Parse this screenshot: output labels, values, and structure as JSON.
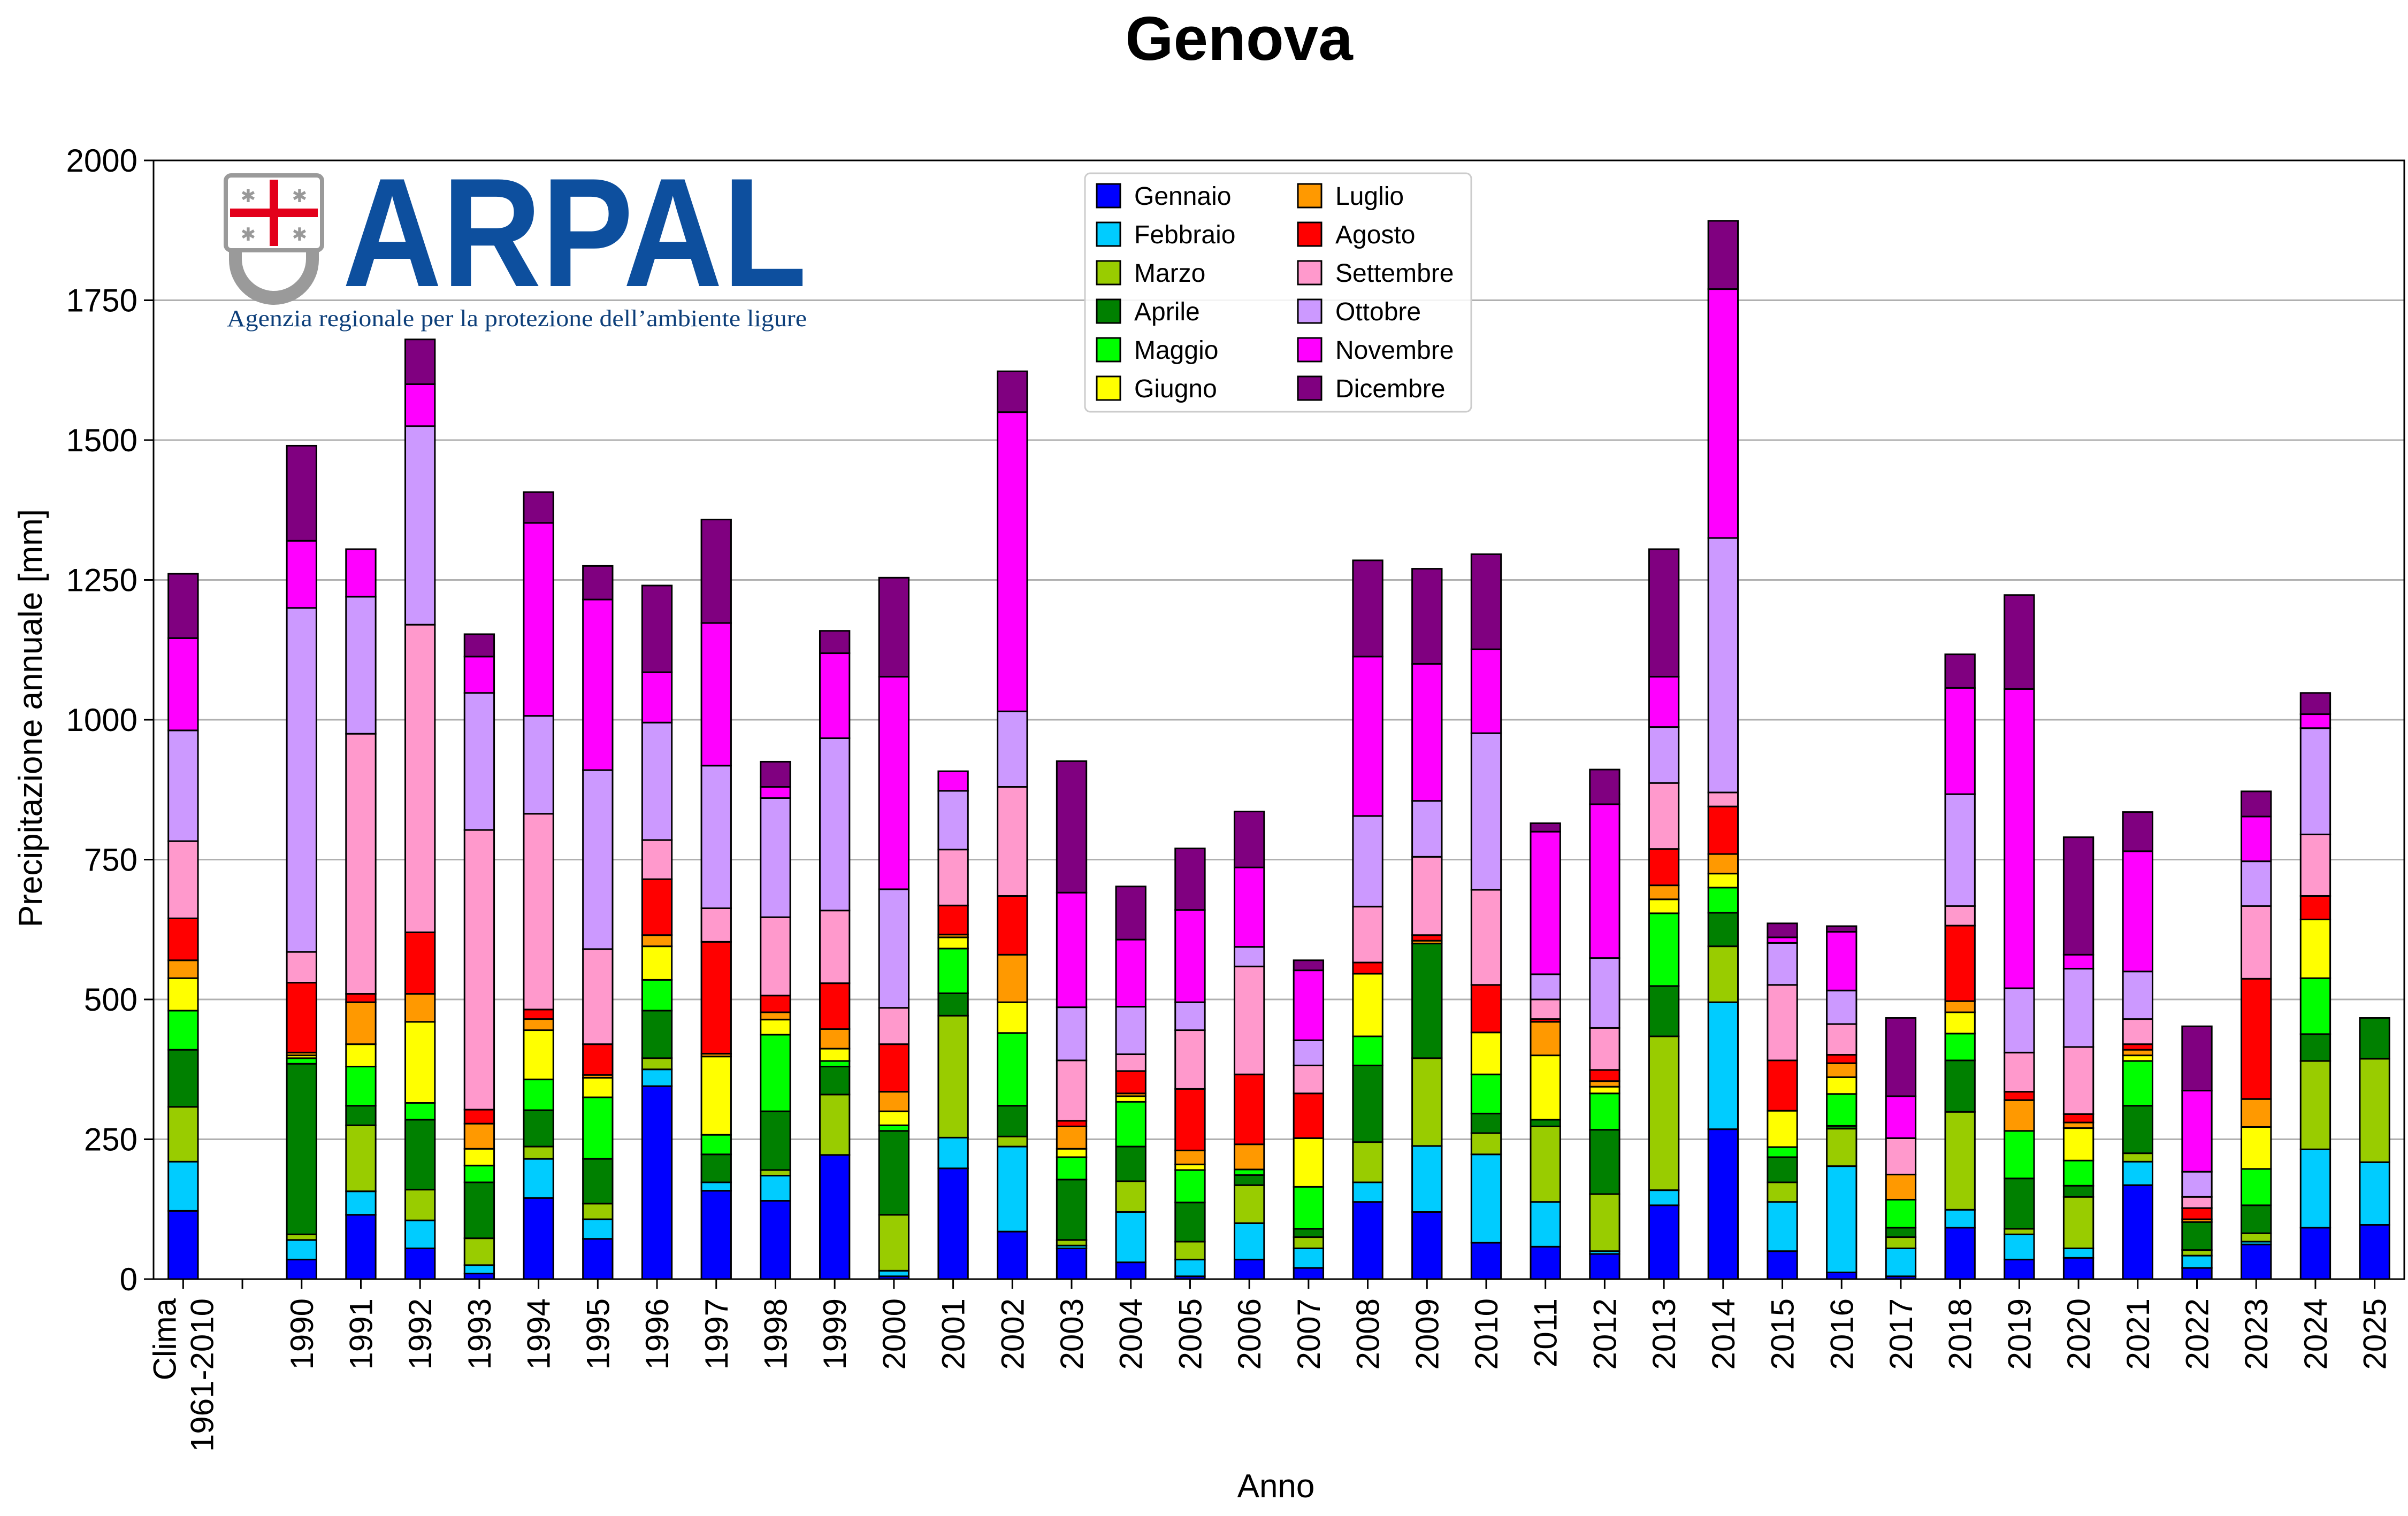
{
  "chart_data": {
    "type": "bar",
    "stacked": true,
    "title": "Genova",
    "xlabel": "Anno",
    "ylabel": "Precipitazione annuale [mm]",
    "ylim": [
      0,
      2000
    ],
    "yticks": [
      "0",
      "250",
      "500",
      "750",
      "1000",
      "1250",
      "1500",
      "1750",
      "2000"
    ],
    "grid": "horizontal",
    "legend_position": "top-center",
    "categories": [
      "Clima\n1961-2010",
      "",
      "1990",
      "1991",
      "1992",
      "1993",
      "1994",
      "1995",
      "1996",
      "1997",
      "1998",
      "1999",
      "2000",
      "2001",
      "2002",
      "2003",
      "2004",
      "2005",
      "2006",
      "2007",
      "2008",
      "2009",
      "2010",
      "2011",
      "2012",
      "2013",
      "2014",
      "2015",
      "2016",
      "2017",
      "2018",
      "2019",
      "2020",
      "2021",
      "2022",
      "2023",
      "2024",
      "2025"
    ],
    "series": [
      {
        "name": "Gennaio",
        "color": "#0000ff",
        "values": [
          122,
          0,
          35,
          115,
          55,
          10,
          145,
          72,
          345,
          158,
          140,
          222,
          5,
          198,
          85,
          55,
          30,
          5,
          35,
          20,
          138,
          120,
          65,
          58,
          45,
          132,
          268,
          50,
          12,
          5,
          92,
          35,
          38,
          168,
          20,
          62,
          92,
          97
        ]
      },
      {
        "name": "Febbraio",
        "color": "#00ccff",
        "values": [
          88,
          0,
          35,
          42,
          50,
          15,
          70,
          35,
          30,
          15,
          45,
          0,
          10,
          55,
          152,
          5,
          90,
          30,
          65,
          35,
          35,
          118,
          158,
          80,
          5,
          27,
          227,
          88,
          190,
          50,
          32,
          45,
          17,
          42,
          22,
          5,
          140,
          112
        ]
      },
      {
        "name": "Marzo",
        "color": "#99cc00",
        "values": [
          98,
          0,
          10,
          118,
          55,
          48,
          22,
          28,
          20,
          0,
          10,
          108,
          100,
          218,
          18,
          10,
          55,
          32,
          68,
          20,
          72,
          157,
          38,
          135,
          102,
          275,
          100,
          35,
          67,
          20,
          175,
          10,
          92,
          15,
          10,
          15,
          158,
          185
        ]
      },
      {
        "name": "Aprile",
        "color": "#008000",
        "values": [
          102,
          0,
          305,
          35,
          125,
          100,
          65,
          80,
          85,
          50,
          105,
          50,
          150,
          40,
          55,
          108,
          62,
          70,
          18,
          15,
          137,
          205,
          35,
          12,
          115,
          90,
          60,
          45,
          5,
          17,
          92,
          90,
          20,
          85,
          50,
          50,
          48,
          73
        ]
      },
      {
        "name": "Maggio",
        "color": "#00ff00",
        "values": [
          70,
          0,
          10,
          70,
          30,
          30,
          55,
          110,
          55,
          35,
          137,
          10,
          10,
          80,
          130,
          40,
          80,
          58,
          10,
          75,
          52,
          0,
          70,
          0,
          65,
          130,
          45,
          18,
          57,
          50,
          48,
          85,
          45,
          80,
          0,
          65,
          100,
          0
        ]
      },
      {
        "name": "Giugno",
        "color": "#ffff00",
        "values": [
          58,
          0,
          5,
          40,
          145,
          30,
          88,
          35,
          60,
          140,
          27,
          22,
          25,
          20,
          55,
          15,
          10,
          10,
          0,
          87,
          112,
          0,
          75,
          115,
          12,
          25,
          25,
          65,
          30,
          0,
          38,
          0,
          58,
          10,
          0,
          75,
          105,
          0
        ]
      },
      {
        "name": "Luglio",
        "color": "#ff9900",
        "values": [
          32,
          0,
          5,
          75,
          50,
          45,
          20,
          5,
          20,
          5,
          13,
          35,
          35,
          5,
          85,
          40,
          5,
          25,
          45,
          0,
          0,
          5,
          0,
          60,
          10,
          25,
          35,
          0,
          25,
          45,
          20,
          55,
          10,
          10,
          5,
          50,
          0,
          0
        ]
      },
      {
        "name": "Agosto",
        "color": "#ff0000",
        "values": [
          75,
          0,
          125,
          15,
          110,
          25,
          17,
          55,
          100,
          200,
          30,
          82,
          85,
          52,
          105,
          10,
          40,
          110,
          125,
          80,
          20,
          10,
          85,
          5,
          20,
          65,
          85,
          90,
          15,
          0,
          135,
          15,
          15,
          10,
          20,
          215,
          42,
          0
        ]
      },
      {
        "name": "Settembre",
        "color": "#ff99cc",
        "values": [
          138,
          0,
          55,
          465,
          550,
          500,
          350,
          170,
          70,
          60,
          140,
          130,
          65,
          100,
          195,
          108,
          30,
          105,
          193,
          50,
          100,
          140,
          170,
          35,
          75,
          118,
          25,
          135,
          55,
          65,
          35,
          70,
          120,
          45,
          20,
          130,
          110,
          0
        ]
      },
      {
        "name": "Ottobre",
        "color": "#cc99ff",
        "values": [
          198,
          0,
          615,
          245,
          355,
          245,
          175,
          320,
          210,
          255,
          213,
          308,
          212,
          105,
          135,
          95,
          85,
          50,
          35,
          45,
          162,
          100,
          280,
          45,
          125,
          100,
          455,
          75,
          60,
          0,
          200,
          115,
          140,
          85,
          45,
          80,
          190,
          0
        ]
      },
      {
        "name": "Novembre",
        "color": "#ff00ff",
        "values": [
          165,
          0,
          120,
          85,
          75,
          65,
          345,
          305,
          90,
          255,
          20,
          152,
          380,
          35,
          535,
          205,
          120,
          165,
          142,
          125,
          285,
          245,
          150,
          255,
          275,
          90,
          445,
          10,
          105,
          75,
          190,
          535,
          25,
          215,
          145,
          80,
          25,
          0
        ]
      },
      {
        "name": "Dicembre",
        "color": "#800080",
        "values": [
          115,
          0,
          170,
          0,
          80,
          40,
          55,
          60,
          155,
          185,
          45,
          40,
          177,
          0,
          73,
          235,
          95,
          110,
          100,
          18,
          172,
          170,
          170,
          15,
          62,
          228,
          122,
          25,
          10,
          140,
          60,
          168,
          210,
          70,
          115,
          45,
          38,
          0
        ]
      }
    ]
  },
  "logo": {
    "name": "ARPAL",
    "subtitle": "Agenzia regionale per la protezione dell’ambiente ligure",
    "brand_color": "#0d4f9e"
  }
}
